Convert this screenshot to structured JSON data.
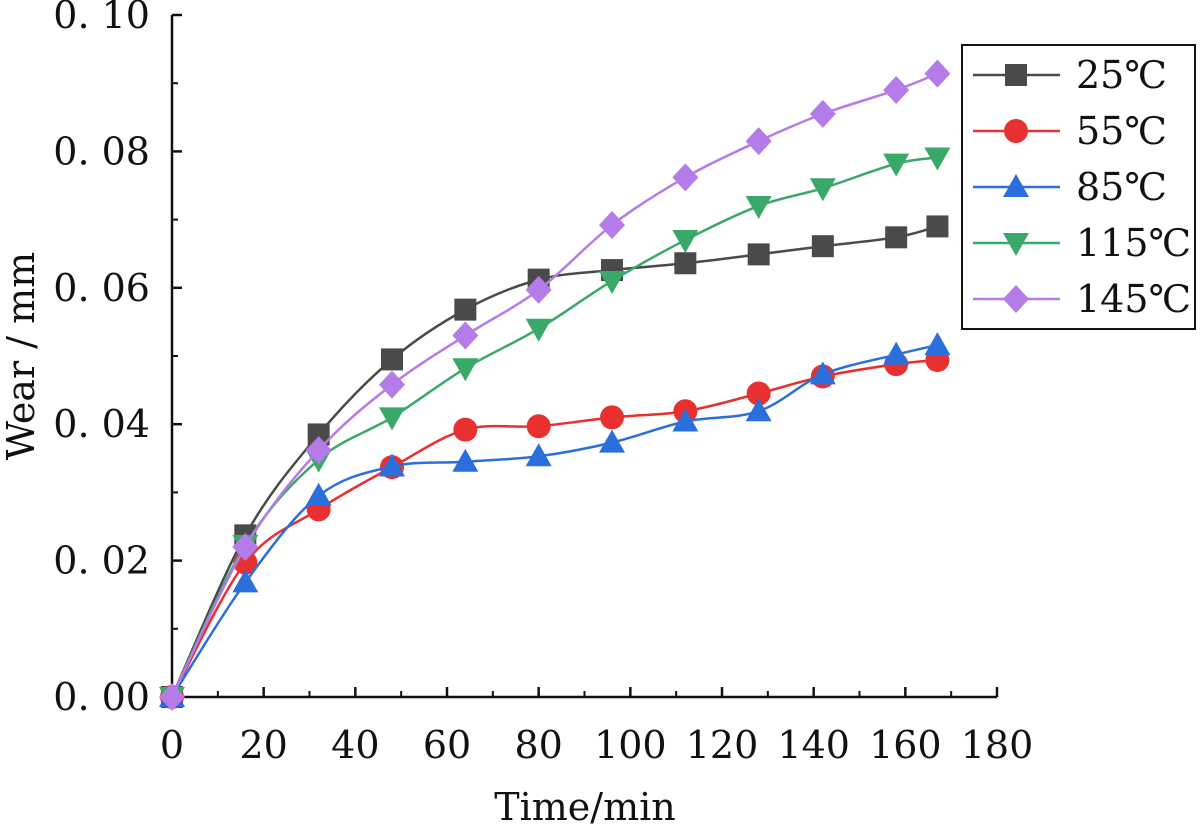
{
  "chart_data": {
    "type": "line",
    "xlabel": "Time/min",
    "ylabel": "Wear / mm",
    "xlim": [
      0,
      180
    ],
    "ylim": [
      0,
      0.1
    ],
    "x_ticks": [
      0,
      20,
      40,
      60,
      80,
      100,
      120,
      140,
      160,
      180
    ],
    "x_tick_labels": [
      "0",
      "20",
      "40",
      "60",
      "80",
      "100",
      "120",
      "140",
      "160",
      "180"
    ],
    "y_ticks": [
      0,
      0.02,
      0.04,
      0.06,
      0.08,
      0.1
    ],
    "y_tick_labels": [
      "0. 00",
      "0. 02",
      "0. 04",
      "0. 06",
      "0. 08",
      "0. 10"
    ],
    "grid": false,
    "legend_position": "top-right",
    "x": [
      0,
      16,
      32,
      48,
      64,
      80,
      96,
      112,
      128,
      142,
      158,
      167
    ],
    "series": [
      {
        "name": "25℃",
        "marker": "square",
        "color": "#4a4a4a",
        "values": [
          0.0,
          0.0237,
          0.0385,
          0.0495,
          0.0568,
          0.0612,
          0.0626,
          0.0636,
          0.0649,
          0.0661,
          0.0674,
          0.069
        ]
      },
      {
        "name": "55℃",
        "marker": "circle",
        "color": "#e83030",
        "values": [
          0.0,
          0.0197,
          0.0275,
          0.0337,
          0.0392,
          0.0397,
          0.041,
          0.0419,
          0.0445,
          0.047,
          0.0488,
          0.0494
        ]
      },
      {
        "name": "85℃",
        "marker": "triangle-up",
        "color": "#2a6fdb",
        "values": [
          0.0,
          0.0168,
          0.0295,
          0.0338,
          0.0345,
          0.0353,
          0.0373,
          0.0404,
          0.0419,
          0.0473,
          0.0502,
          0.0516
        ]
      },
      {
        "name": "115℃",
        "marker": "triangle-down",
        "color": "#3aa868",
        "values": [
          0.0,
          0.0223,
          0.0348,
          0.041,
          0.0482,
          0.054,
          0.061,
          0.067,
          0.072,
          0.0746,
          0.0782,
          0.0791
        ]
      },
      {
        "name": "145℃",
        "marker": "diamond",
        "color": "#b57be8",
        "values": [
          0.0,
          0.022,
          0.0362,
          0.0458,
          0.053,
          0.0597,
          0.0692,
          0.0762,
          0.0815,
          0.0855,
          0.089,
          0.0914
        ]
      }
    ]
  }
}
